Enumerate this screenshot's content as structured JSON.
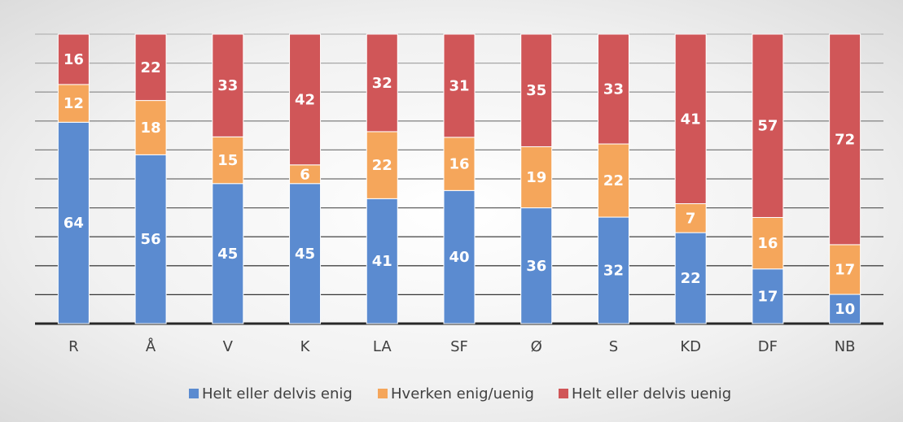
{
  "chart_data": {
    "type": "bar",
    "stacking": "percent",
    "categories": [
      "R",
      "Å",
      "V",
      "K",
      "LA",
      "SF",
      "Ø",
      "S",
      "KD",
      "DF",
      "NB"
    ],
    "series": [
      {
        "name": "Helt eller delvis enig",
        "color": "#5b8bd0",
        "values": [
          64,
          56,
          45,
          45,
          41,
          40,
          36,
          32,
          22,
          17,
          10
        ]
      },
      {
        "name": "Hverken enig/uenig",
        "color": "#f5a65b",
        "values": [
          12,
          18,
          15,
          6,
          22,
          16,
          19,
          22,
          7,
          16,
          17
        ]
      },
      {
        "name": "Helt eller delvis uenig",
        "color": "#d05658",
        "values": [
          16,
          22,
          33,
          42,
          32,
          31,
          35,
          33,
          41,
          57,
          72
        ]
      }
    ],
    "ylim": [
      0,
      100
    ],
    "yticks": [
      0,
      10,
      20,
      30,
      40,
      50,
      60,
      70,
      80,
      90,
      100
    ],
    "grid": true,
    "legend": "bottom"
  }
}
